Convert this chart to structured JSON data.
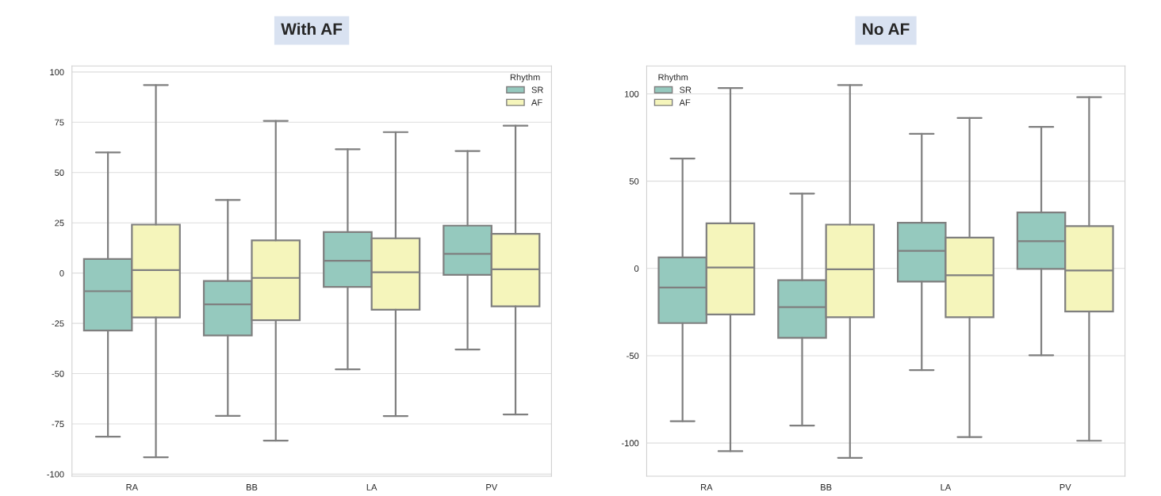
{
  "chart_data": [
    {
      "type": "box",
      "title": "With AF",
      "categories": [
        "RA",
        "BB",
        "LA",
        "PV"
      ],
      "ylim": [
        -101,
        103
      ],
      "yticks": [
        -100,
        -75,
        -50,
        -25,
        0,
        25,
        50,
        75,
        100
      ],
      "grid": "y",
      "legend": "top right",
      "legend_title": "Rhythm",
      "series": [
        {
          "name": "SR",
          "color": "#95c9be",
          "boxes": [
            {
              "low": -81.4,
              "q1": -28.6,
              "median": -9,
              "q3": 7,
              "high": 60
            },
            {
              "low": -71,
              "q1": -31,
              "median": -15.6,
              "q3": -3.9,
              "high": 36.4
            },
            {
              "low": -47.9,
              "q1": -6.9,
              "median": 6.1,
              "q3": 20.4,
              "high": 61.6
            },
            {
              "low": -38,
              "q1": -0.9,
              "median": 9.6,
              "q3": 23.6,
              "high": 60.7
            }
          ]
        },
        {
          "name": "AF",
          "color": "#f5f5bb",
          "boxes": [
            {
              "low": -91.6,
              "q1": -22.1,
              "median": 1.5,
              "q3": 24.1,
              "high": 93.5
            },
            {
              "low": -83.3,
              "q1": -23.4,
              "median": -2.4,
              "q3": 16.3,
              "high": 75.7
            },
            {
              "low": -71.1,
              "q1": -18.2,
              "median": 0.4,
              "q3": 17.3,
              "high": 70.1
            },
            {
              "low": -70.3,
              "q1": -16.5,
              "median": 1.9,
              "q3": 19.5,
              "high": 73.3
            }
          ]
        }
      ]
    },
    {
      "type": "box",
      "title": "No AF",
      "categories": [
        "RA",
        "BB",
        "LA",
        "PV"
      ],
      "ylim": [
        -119,
        116
      ],
      "yticks": [
        -100,
        -50,
        0,
        50,
        100
      ],
      "grid": "y",
      "legend": "top left",
      "legend_title": "Rhythm",
      "series": [
        {
          "name": "SR",
          "color": "#95c9be",
          "boxes": [
            {
              "low": -87.5,
              "q1": -31.3,
              "median": -10.9,
              "q3": 6.3,
              "high": 63
            },
            {
              "low": -90,
              "q1": -39.8,
              "median": -22.2,
              "q3": -6.7,
              "high": 42.9
            },
            {
              "low": -58.2,
              "q1": -7.5,
              "median": 10.1,
              "q3": 26.2,
              "high": 77.1
            },
            {
              "low": -49.7,
              "q1": -0.3,
              "median": 15.6,
              "q3": 32.1,
              "high": 81.1
            }
          ]
        },
        {
          "name": "AF",
          "color": "#f5f5bb",
          "boxes": [
            {
              "low": -104.7,
              "q1": -26.4,
              "median": 0.5,
              "q3": 25.8,
              "high": 103.4
            },
            {
              "low": -108.5,
              "q1": -27.9,
              "median": -0.5,
              "q3": 25.1,
              "high": 105.1
            },
            {
              "low": -96.6,
              "q1": -27.9,
              "median": -3.9,
              "q3": 17.7,
              "high": 86.2
            },
            {
              "low": -98.7,
              "q1": -24.7,
              "median": -1.2,
              "q3": 24.3,
              "high": 98.1
            }
          ]
        }
      ]
    }
  ]
}
